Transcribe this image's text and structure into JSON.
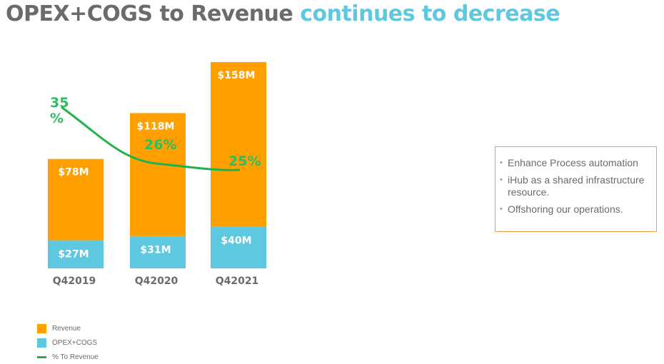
{
  "header": {
    "title_part1": "OPEX+COGS to Revenue",
    "title_part2": "continues to decrease"
  },
  "chart_data": {
    "type": "bar",
    "stacked": true,
    "categories": [
      "Q42019",
      "Q42020",
      "Q42021"
    ],
    "series": [
      {
        "name": "OPEX+COGS",
        "values": [
          27,
          31,
          40
        ],
        "labels": [
          "$27M",
          "$31M",
          "$40M"
        ],
        "color": "#5ec8e0"
      },
      {
        "name": "Revenue",
        "values": [
          78,
          118,
          158
        ],
        "labels": [
          "$78M",
          "$118M",
          "$158M"
        ],
        "color": "#ffa000"
      }
    ],
    "line": {
      "name": "% To Revenue",
      "values": [
        35,
        26,
        25
      ],
      "labels": [
        "35\n%",
        "26%",
        "25%"
      ],
      "color": "#22b24c"
    },
    "legend": [
      "Revenue",
      "OPEX+COGS",
      "% To Revenue"
    ],
    "legend_position": "bottom-left",
    "grid": false
  },
  "notes": {
    "items": [
      "Enhance Process automation",
      "iHub as a shared infrastructure resource.",
      "Offshoring our operations."
    ]
  }
}
